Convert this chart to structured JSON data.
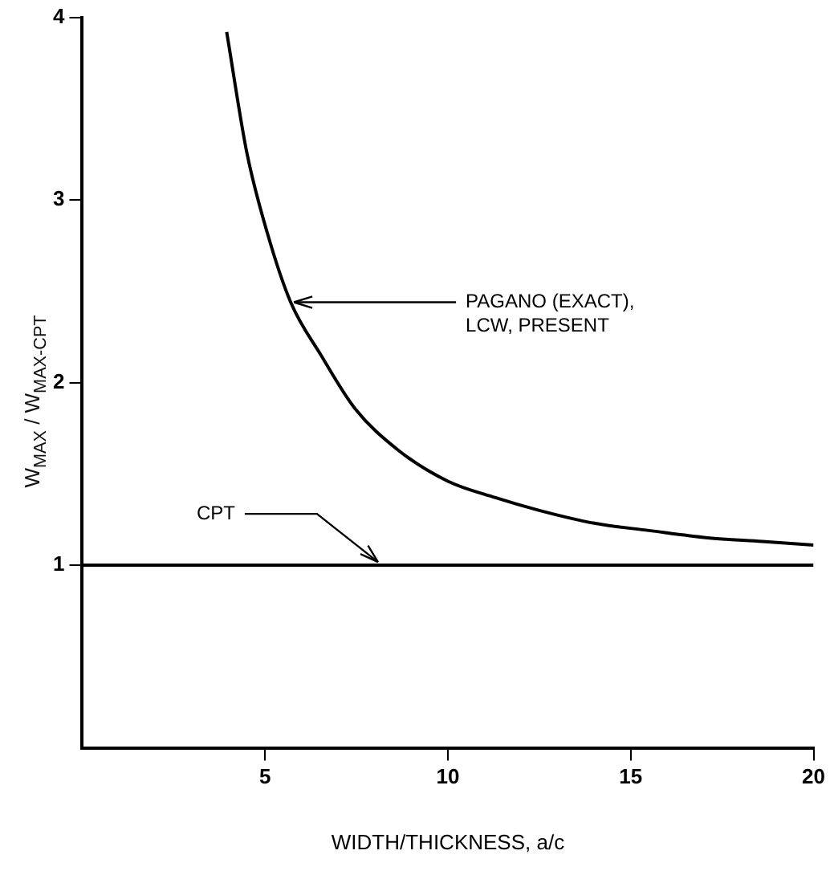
{
  "chart_data": {
    "type": "line",
    "xlabel": "WIDTH/THICKNESS, a/c",
    "ylabel": "W$_{MAX}$ / W$_{MAX-CPT}$",
    "series": [
      {
        "color": "#000000",
        "x": [
          3.95,
          4.5,
          5.06,
          5.7,
          6.53,
          7.45,
          8.64,
          10.0,
          11.3,
          12.5,
          14.0,
          15.5,
          17.1,
          18.6,
          20
        ],
        "values": [
          3.92,
          3.26,
          2.82,
          2.44,
          2.15,
          1.86,
          1.63,
          1.46,
          1.37,
          1.3,
          1.23,
          1.19,
          1.15,
          1.13,
          1.11
        ]
      },
      {
        "color": "#000000",
        "x": [
          0,
          20
        ],
        "values": [
          1,
          1
        ]
      }
    ],
    "annotations": [
      {
        "text": "PAGANO (EXACT), LCW, PRESENT",
        "x": 5.7,
        "y": 2.44
      },
      {
        "text": "CPT",
        "x": 8,
        "y": 1
      }
    ],
    "xlim": [
      0,
      20
    ],
    "ylim": [
      0,
      4
    ],
    "xticks": [
      5,
      10,
      15,
      20
    ],
    "yticks": [
      1,
      2,
      3,
      4
    ],
    "grid": false,
    "legend": false,
    "marker": "none",
    "line_style": "solid"
  }
}
